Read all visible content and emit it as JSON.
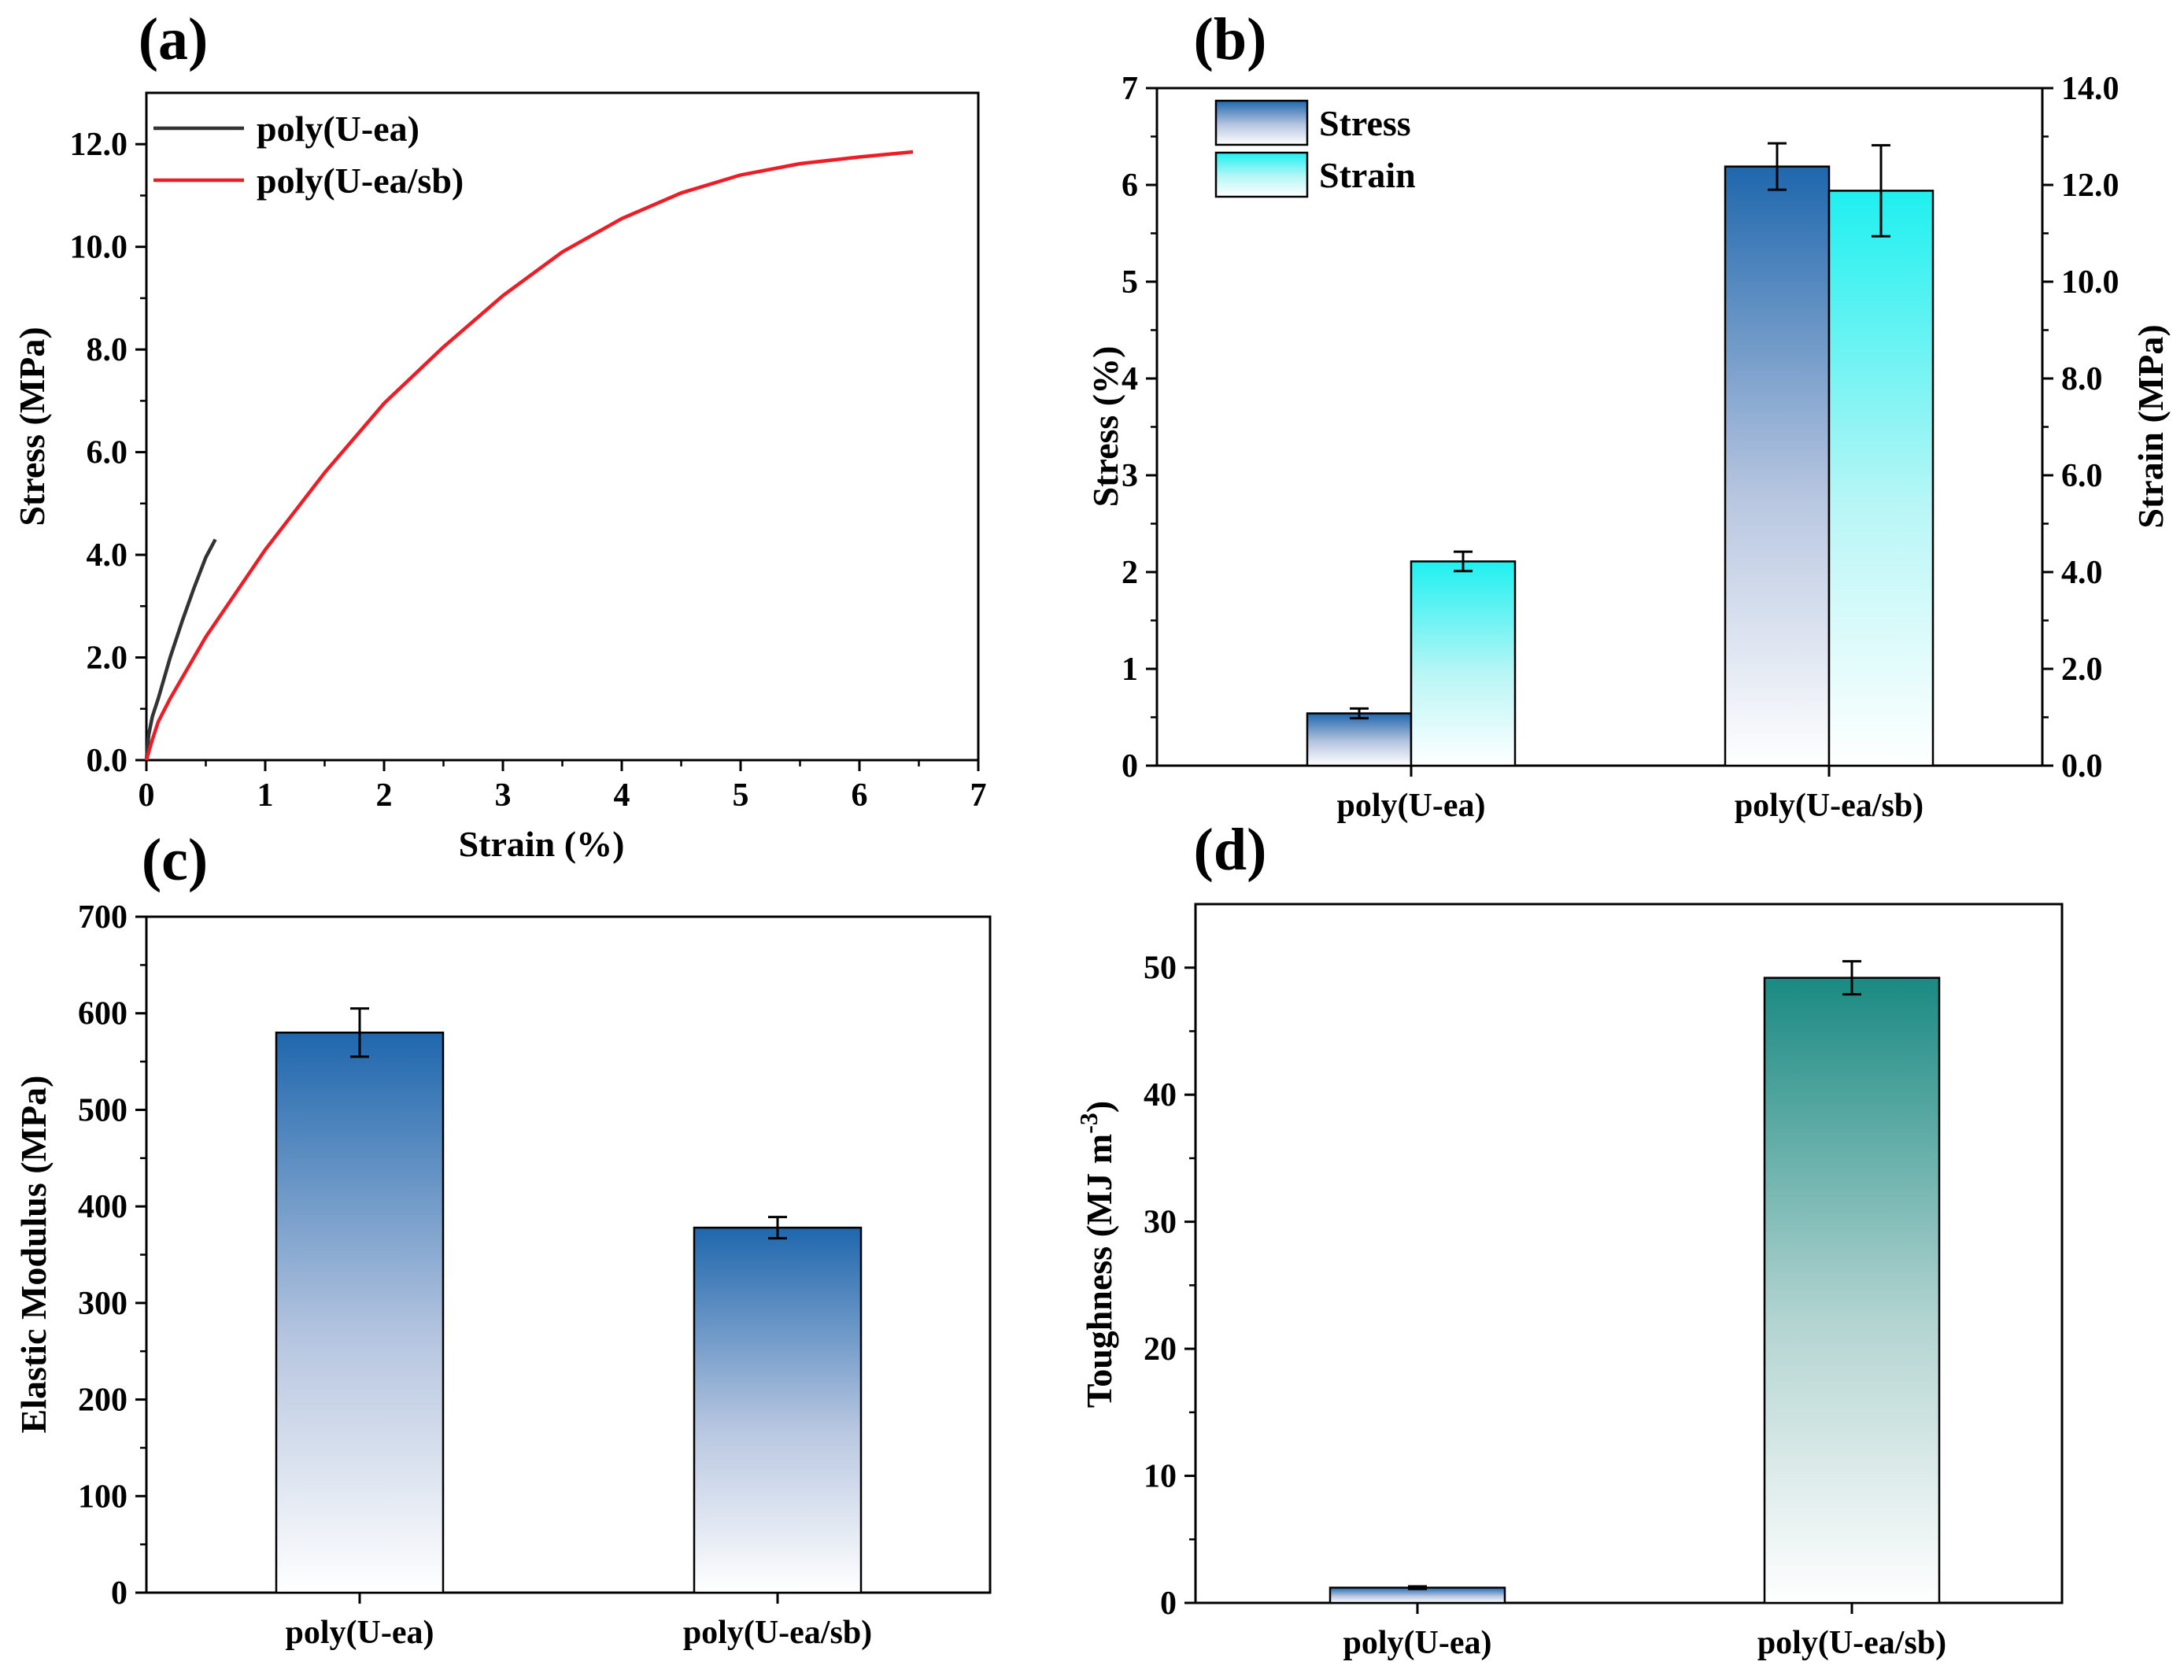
{
  "chart_data": [
    {
      "panel": "(a)",
      "type": "line",
      "xlabel": "Strain (%)",
      "ylabel": "Stress (MPa)",
      "xlim": [
        0,
        7
      ],
      "ylim": [
        0,
        13
      ],
      "x_ticks": [
        "0",
        "1",
        "2",
        "3",
        "4",
        "5",
        "6",
        "7"
      ],
      "y_ticks": [
        "0.0",
        "2.0",
        "4.0",
        "6.0",
        "8.0",
        "10.0",
        "12.0"
      ],
      "legend": "top-left",
      "series": [
        {
          "name": "poly(U-ea)",
          "color": "#333333",
          "x": [
            0,
            0.02,
            0.05,
            0.1,
            0.2,
            0.3,
            0.4,
            0.5,
            0.58
          ],
          "y": [
            0,
            0.5,
            0.85,
            1.2,
            2.0,
            2.7,
            3.35,
            3.95,
            4.3
          ]
        },
        {
          "name": "poly(U-ea/sb)",
          "color": "#ee1c25",
          "x": [
            0,
            0.05,
            0.1,
            0.2,
            0.5,
            1.0,
            1.5,
            2.0,
            2.5,
            3.0,
            3.5,
            4.0,
            4.5,
            5.0,
            5.5,
            6.0,
            6.45
          ],
          "y": [
            0,
            0.4,
            0.75,
            1.2,
            2.4,
            4.1,
            5.6,
            6.95,
            8.05,
            9.05,
            9.9,
            10.55,
            11.05,
            11.4,
            11.62,
            11.75,
            11.85
          ]
        }
      ]
    },
    {
      "panel": "(b)",
      "type": "bar",
      "categories": [
        "poly(U-ea)",
        "poly(U-ea/sb)"
      ],
      "ylabel": "Stress (%)",
      "y2label": "Strain (MPa)",
      "ylim": [
        0,
        7
      ],
      "y2lim": [
        0,
        14
      ],
      "y_ticks": [
        "0",
        "1",
        "2",
        "3",
        "4",
        "5",
        "6",
        "7"
      ],
      "y2_ticks": [
        "0.0",
        "2.0",
        "4.0",
        "6.0",
        "8.0",
        "10.0",
        "12.0",
        "14.0"
      ],
      "legend": "top-left",
      "series": [
        {
          "name": "Stress",
          "axis": "left",
          "values": [
            0.54,
            6.19
          ],
          "errors": [
            0.05,
            0.24
          ],
          "color": "#1f67ad"
        },
        {
          "name": "Strain",
          "axis": "right",
          "values": [
            4.22,
            11.88
          ],
          "errors": [
            0.2,
            0.94
          ],
          "color": "#1ff0f0"
        }
      ]
    },
    {
      "panel": "(c)",
      "type": "bar",
      "categories": [
        "poly(U-ea)",
        "poly(U-ea/sb)"
      ],
      "ylabel": "Elastic Modulus (MPa)",
      "ylim": [
        0,
        700
      ],
      "y_ticks": [
        "0",
        "100",
        "200",
        "300",
        "400",
        "500",
        "600",
        "700"
      ],
      "series": [
        {
          "values": [
            580,
            378
          ],
          "errors": [
            25,
            11
          ],
          "color": "#1f67ad"
        }
      ]
    },
    {
      "panel": "(d)",
      "type": "bar",
      "categories": [
        "poly(U-ea)",
        "poly(U-ea/sb)"
      ],
      "ylabel": "Toughness (MJ m",
      "ylabel_sup": "-3",
      "ylabel_close": ")",
      "ylim": [
        0,
        55
      ],
      "y_ticks": [
        "0",
        "10",
        "20",
        "30",
        "40",
        "50"
      ],
      "series": [
        {
          "values": [
            1.2,
            49.2
          ],
          "errors": [
            0.1,
            1.3
          ],
          "color": "#1a8a82"
        }
      ]
    }
  ]
}
